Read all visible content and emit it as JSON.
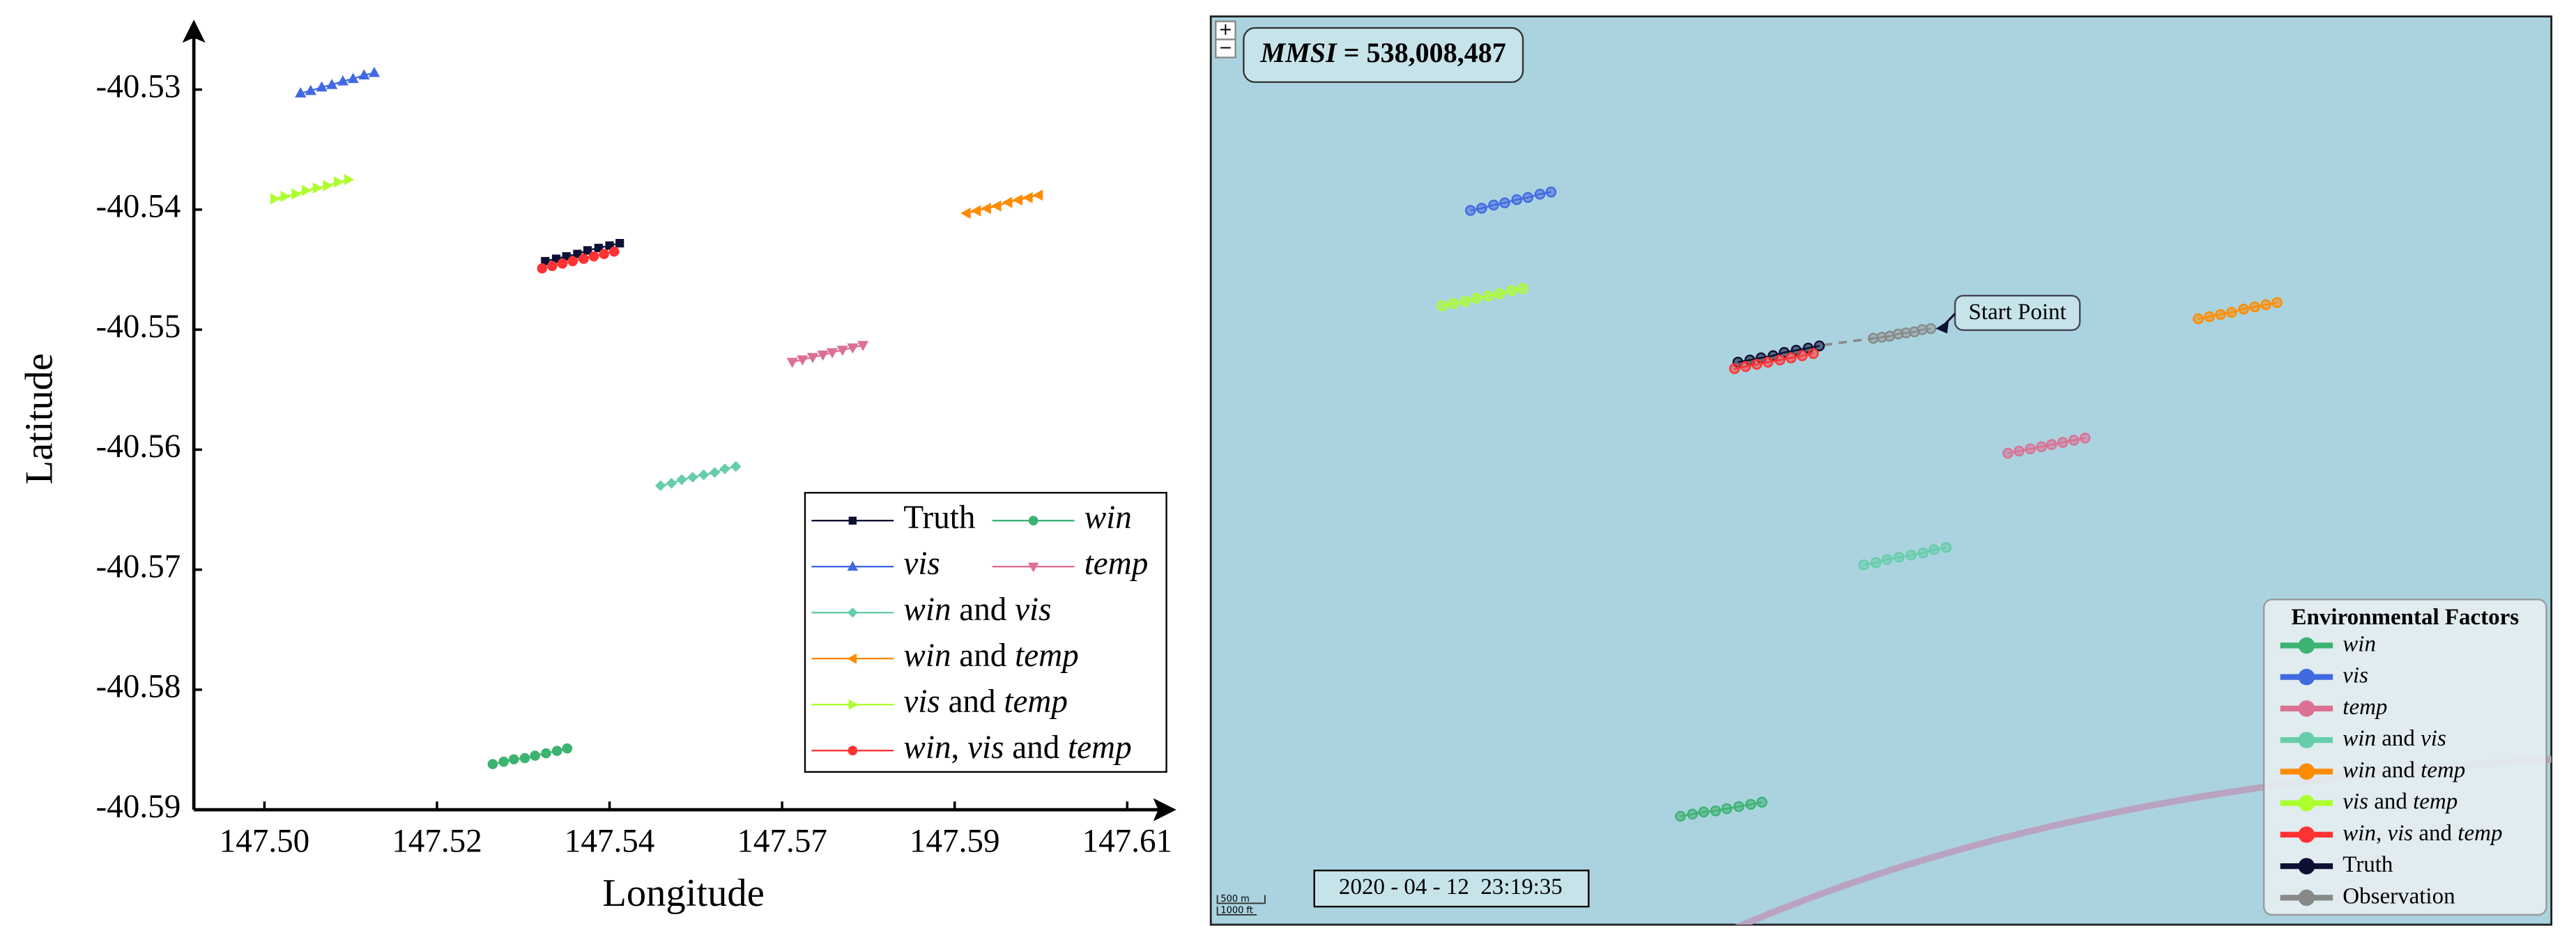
{
  "chart_data": {
    "type": "line",
    "xlabel": "Longitude",
    "ylabel": "Latitude",
    "xlim": [
      147.491,
      147.615
    ],
    "ylim": [
      -40.59,
      -40.525
    ],
    "xticks": [
      {
        "value": 147.5,
        "label": "147.50"
      },
      {
        "value": 147.522,
        "label": "147.52"
      },
      {
        "value": 147.544,
        "label": "147.54"
      },
      {
        "value": 147.566,
        "label": "147.57"
      },
      {
        "value": 147.588,
        "label": "147.59"
      },
      {
        "value": 147.61,
        "label": "147.61"
      }
    ],
    "yticks": [
      -40.53,
      -40.54,
      -40.55,
      -40.56,
      -40.57,
      -40.58,
      -40.59
    ],
    "series": [
      {
        "name": "Truth",
        "color": "#0d1033",
        "marker": "square",
        "x": [
          147.5358,
          147.5372,
          147.5385,
          147.5399,
          147.5412,
          147.5426,
          147.544,
          147.5453
        ],
        "values": [
          -40.5443,
          -40.5441,
          -40.5439,
          -40.5437,
          -40.5434,
          -40.5432,
          -40.543,
          -40.5428
        ]
      },
      {
        "name": "win",
        "color": "#3cb371",
        "marker": "circle",
        "x": [
          147.5291,
          147.5305,
          147.5318,
          147.5332,
          147.5345,
          147.5359,
          147.5373,
          147.5386
        ],
        "values": [
          -40.5862,
          -40.586,
          -40.5858,
          -40.5857,
          -40.5855,
          -40.5853,
          -40.5851,
          -40.5849
        ]
      },
      {
        "name": "vis",
        "color": "#4169e1",
        "marker": "triangle-up",
        "x": [
          147.5046,
          147.5059,
          147.5073,
          147.5086,
          147.51,
          147.5113,
          147.5127,
          147.514
        ],
        "values": [
          -40.5303,
          -40.5301,
          -40.5298,
          -40.5296,
          -40.5293,
          -40.5291,
          -40.5288,
          -40.5286
        ]
      },
      {
        "name": "temp",
        "color": "#db7093",
        "marker": "triangle-down",
        "x": [
          147.5673,
          147.5686,
          147.5699,
          147.5712,
          147.5724,
          147.5737,
          147.575,
          147.5763
        ],
        "values": [
          -40.5527,
          -40.5525,
          -40.5523,
          -40.5521,
          -40.5519,
          -40.5517,
          -40.5515,
          -40.5513
        ]
      },
      {
        "name": "win and vis",
        "color": "#66cdaa",
        "marker": "diamond",
        "x": [
          147.5505,
          147.5519,
          147.5532,
          147.5546,
          147.556,
          147.5574,
          147.5587,
          147.5601
        ],
        "values": [
          -40.563,
          -40.5628,
          -40.5625,
          -40.5623,
          -40.5621,
          -40.5619,
          -40.5616,
          -40.5614
        ]
      },
      {
        "name": "win and temp",
        "color": "#ff8c00",
        "marker": "triangle-left",
        "x": [
          147.5895,
          147.5908,
          147.5921,
          147.5934,
          147.5948,
          147.5961,
          147.5974,
          147.5987
        ],
        "values": [
          -40.5403,
          -40.5401,
          -40.5399,
          -40.5397,
          -40.5394,
          -40.5392,
          -40.539,
          -40.5388
        ]
      },
      {
        "name": "vis and temp",
        "color": "#adff2f",
        "marker": "triangle-right",
        "x": [
          147.5013,
          147.5026,
          147.504,
          147.5053,
          147.5067,
          147.508,
          147.5094,
          147.5107
        ],
        "values": [
          -40.5391,
          -40.5389,
          -40.5387,
          -40.5384,
          -40.5382,
          -40.538,
          -40.5377,
          -40.5375
        ]
      },
      {
        "name": "win, vis and temp",
        "color": "#ff3333",
        "marker": "circle",
        "x": [
          147.5354,
          147.5367,
          147.538,
          147.5393,
          147.5407,
          147.542,
          147.5433,
          147.5446
        ],
        "values": [
          -40.5449,
          -40.5447,
          -40.5445,
          -40.5443,
          -40.5441,
          -40.5439,
          -40.5437,
          -40.5435
        ]
      }
    ]
  },
  "map": {
    "title": "MMSI = 538,008,487",
    "timestamp": "2020 - 04 - 12  23:19:35",
    "legend_title": "Environmental Factors",
    "annotation": "Start Point",
    "scale_labels": [
      "500 m",
      "1000 ft"
    ],
    "zoom": [
      "+",
      "−"
    ],
    "xlim": [
      147.4743,
      147.6307
    ],
    "ylim": [
      -40.5962,
      -40.5124
    ],
    "observation": {
      "name": "Observation",
      "color": "#888888",
      "x": [
        147.5516,
        147.5526,
        147.5535,
        147.5545,
        147.5554,
        147.5564,
        147.5573,
        147.5583
      ],
      "values": [
        -40.5421,
        -40.542,
        -40.5419,
        -40.5417,
        -40.5416,
        -40.5415,
        -40.5413,
        -40.5412
      ]
    }
  }
}
